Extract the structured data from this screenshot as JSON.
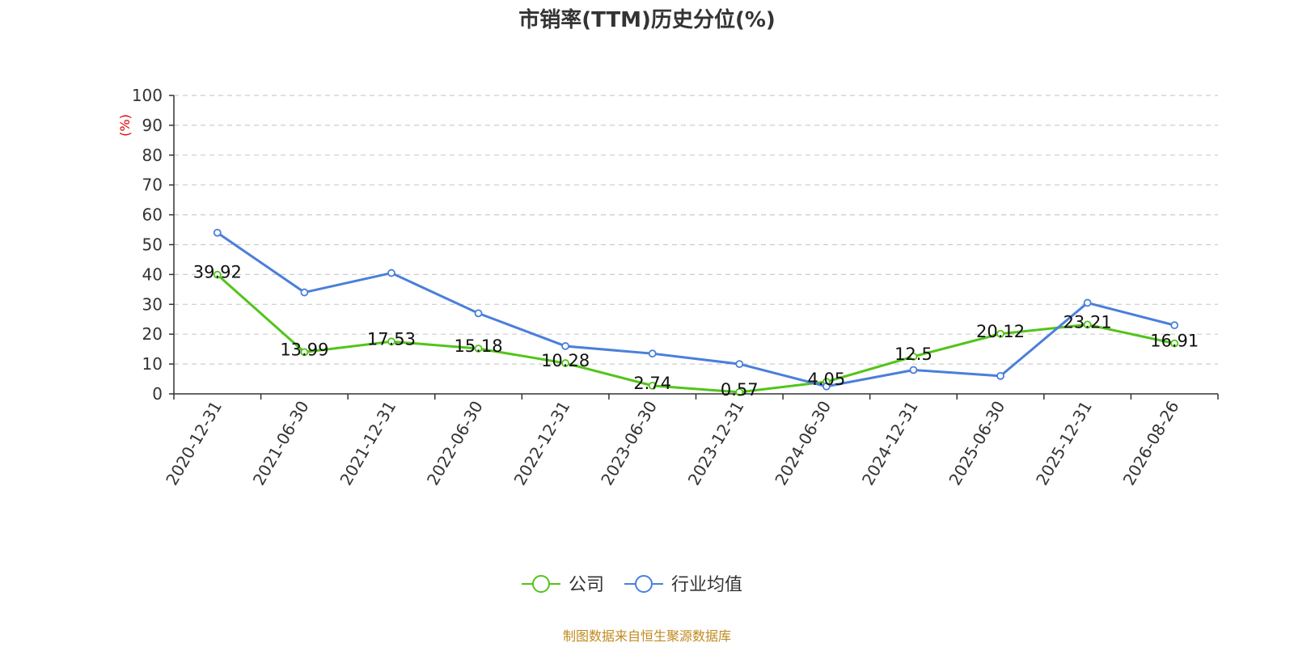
{
  "chart_data": {
    "type": "line",
    "title": "市销率(TTM)历史分位(%)",
    "ylabel": "(%)",
    "ylim": [
      0,
      100
    ],
    "yticks": [
      0,
      10,
      20,
      30,
      40,
      50,
      60,
      70,
      80,
      90,
      100
    ],
    "categories": [
      "2020-12-31",
      "2021-06-30",
      "2021-12-31",
      "2022-06-30",
      "2022-12-31",
      "2023-06-30",
      "2023-12-31",
      "2024-06-30",
      "2024-12-31",
      "2025-06-30",
      "2025-12-31",
      "2026-08-26"
    ],
    "grid": true,
    "legend_position": "bottom",
    "series": [
      {
        "name": "公司",
        "color": "#52c41a",
        "values": [
          39.92,
          13.99,
          17.53,
          15.18,
          10.28,
          2.74,
          0.57,
          4.05,
          12.5,
          20.12,
          23.21,
          16.91
        ],
        "labels": [
          "39.92",
          "13.99",
          "17.53",
          "15.18",
          "10.28",
          "2.74",
          "0.57",
          "4.05",
          "12.5",
          "20.12",
          "23.21",
          "16.91"
        ]
      },
      {
        "name": "行业均值",
        "color": "#4a7fdb",
        "values": [
          54,
          34,
          40.5,
          27,
          16,
          13.5,
          10,
          2.5,
          8,
          6,
          30.5,
          23
        ]
      }
    ]
  },
  "source": "制图数据来自恒生聚源数据库"
}
